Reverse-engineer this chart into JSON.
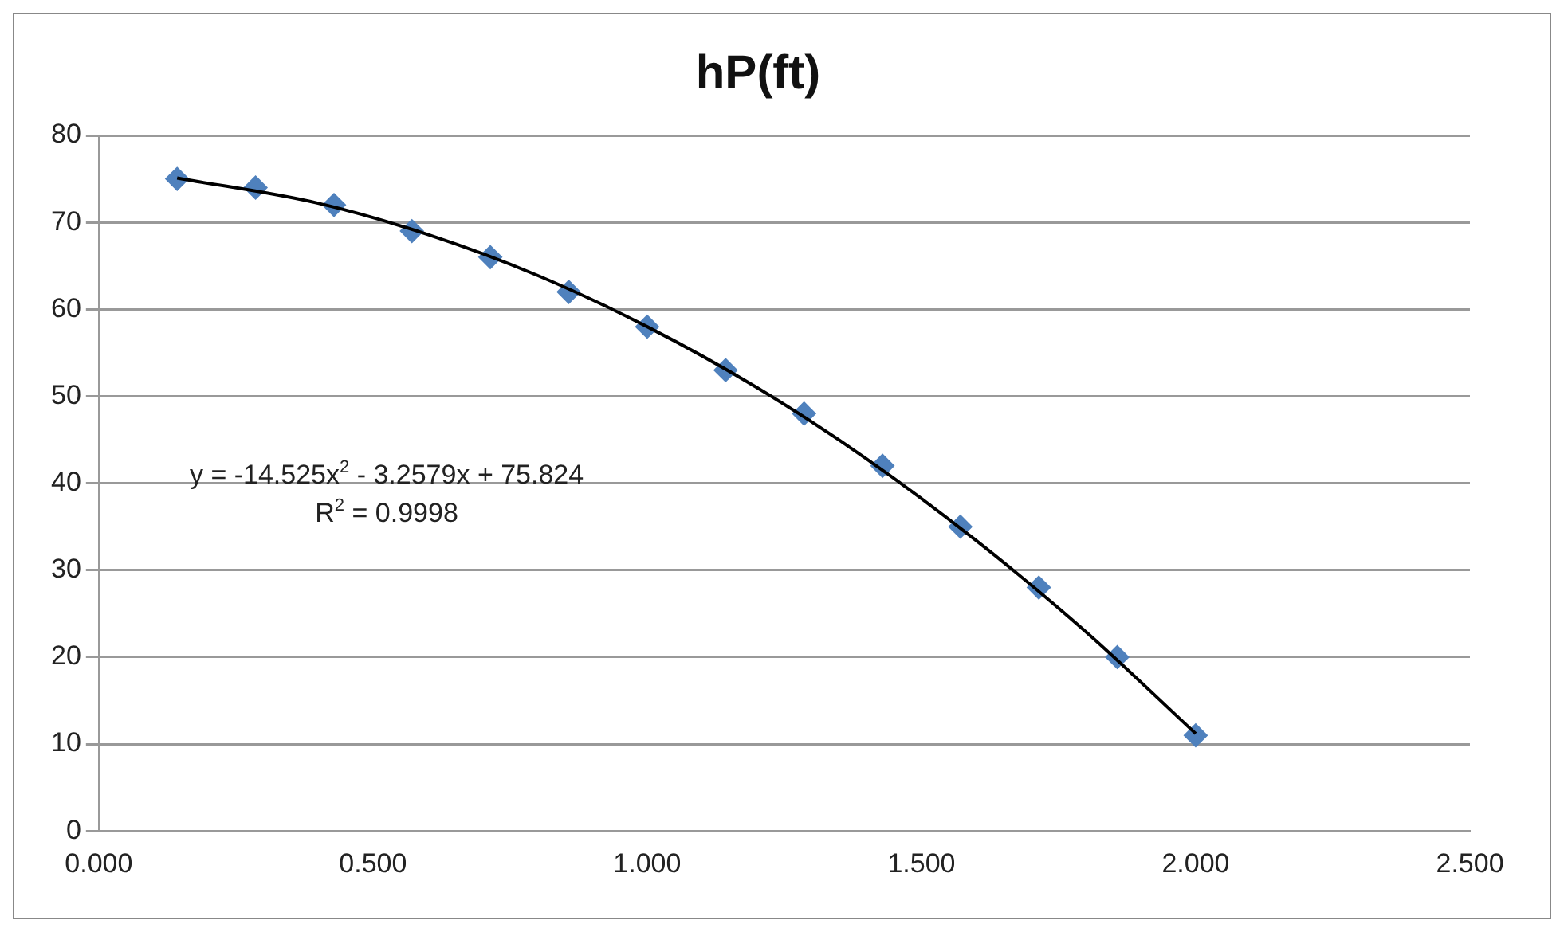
{
  "chart_data": {
    "type": "scatter",
    "title": "hP(ft)",
    "series": [
      {
        "color": "#4f81bd",
        "marker": "diamond",
        "x": [
          0.143,
          0.286,
          0.429,
          0.571,
          0.714,
          0.857,
          1.0,
          1.143,
          1.286,
          1.429,
          1.571,
          1.714,
          1.857,
          2.0
        ],
        "values": [
          75,
          74,
          72,
          69,
          66,
          62,
          58,
          53,
          48,
          42,
          35,
          28,
          20,
          11
        ]
      },
      {
        "type": "line",
        "color": "#000000",
        "marker": "none",
        "line_style": "solid",
        "x": [
          0.143,
          0.4,
          0.6,
          0.8,
          1.0,
          1.2,
          1.4,
          1.6,
          1.8,
          2.0
        ],
        "values": [
          75.1,
          72.2,
          68.6,
          63.9,
          58.0,
          51.0,
          42.8,
          33.4,
          22.9,
          11.2
        ]
      }
    ],
    "xlim": [
      0,
      2.5
    ],
    "xticks": [
      {
        "value": 0,
        "label": "0.000"
      },
      {
        "value": 0.5,
        "label": "0.500"
      },
      {
        "value": 1,
        "label": "1.000"
      },
      {
        "value": 1.5,
        "label": "1.500"
      },
      {
        "value": 2,
        "label": "2.000"
      },
      {
        "value": 2.5,
        "label": "2.500"
      }
    ],
    "ylim": [
      0,
      80
    ],
    "yticks": [
      0,
      10,
      20,
      30,
      40,
      50,
      60,
      70,
      80
    ],
    "grid": "y",
    "legend": false,
    "annotations": [
      "y = -14.525x$^{2}$ - 3.2579x + 75.824",
      "R$^{2}$ = 0.9998"
    ]
  }
}
